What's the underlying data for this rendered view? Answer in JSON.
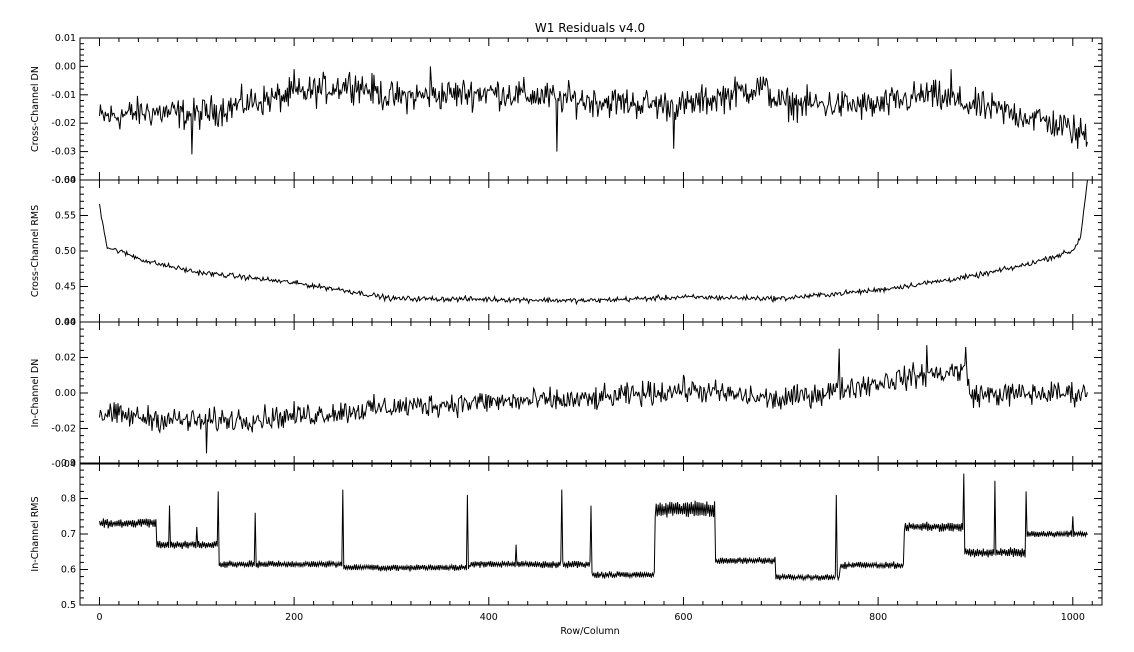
{
  "chart_data": {
    "type": "line",
    "title": "W1 Residuals v4.0",
    "xlabel": "Row/Column",
    "xlim": [
      -20,
      1030
    ],
    "x_ticks": [
      0,
      200,
      400,
      600,
      800,
      1000
    ],
    "x_tick_labels": [
      "0",
      "200",
      "400",
      "600",
      "800",
      "1000"
    ],
    "x_points": 1016,
    "panels": [
      {
        "ylabel": "Cross-Channel DN",
        "ylim": [
          -0.04,
          0.01
        ],
        "y_ticks": [
          -0.04,
          -0.03,
          -0.02,
          -0.01,
          0.0,
          0.01
        ],
        "y_tick_labels": [
          "-0.04",
          "-0.03",
          "-0.02",
          "-0.01",
          "0.00",
          "0.01"
        ],
        "trend_x": [
          0,
          50,
          100,
          150,
          200,
          260,
          300,
          400,
          500,
          600,
          680,
          700,
          800,
          850,
          900,
          960,
          1015
        ],
        "trend_y": [
          -0.018,
          -0.016,
          -0.017,
          -0.013,
          -0.01,
          -0.006,
          -0.011,
          -0.009,
          -0.012,
          -0.014,
          -0.007,
          -0.013,
          -0.014,
          -0.01,
          -0.014,
          -0.018,
          -0.024
        ],
        "noise": 0.0045,
        "features": [
          {
            "x": 95,
            "y": -0.031
          },
          {
            "x": 200,
            "y": -0.001
          },
          {
            "x": 340,
            "y": 0.0
          },
          {
            "x": 470,
            "y": -0.03
          },
          {
            "x": 590,
            "y": -0.029
          },
          {
            "x": 875,
            "y": -0.001
          },
          {
            "x": 1005,
            "y": -0.029
          }
        ]
      },
      {
        "ylabel": "Cross-Channel RMS",
        "ylim": [
          0.4,
          0.6
        ],
        "y_ticks": [
          0.4,
          0.45,
          0.5,
          0.55,
          0.6
        ],
        "y_tick_labels": [
          "0.40",
          "0.45",
          "0.50",
          "0.55",
          "0.60"
        ],
        "trend_x": [
          0,
          8,
          20,
          50,
          100,
          150,
          200,
          250,
          300,
          400,
          500,
          600,
          700,
          800,
          900,
          950,
          1000,
          1008,
          1015
        ],
        "trend_y": [
          0.565,
          0.505,
          0.5,
          0.485,
          0.47,
          0.463,
          0.455,
          0.445,
          0.433,
          0.432,
          0.43,
          0.435,
          0.433,
          0.445,
          0.465,
          0.48,
          0.5,
          0.52,
          0.6
        ],
        "noise": 0.003,
        "features": []
      },
      {
        "ylabel": "In-Channel DN",
        "ylim": [
          -0.04,
          0.04
        ],
        "y_ticks": [
          -0.04,
          -0.02,
          0.0,
          0.02,
          0.04
        ],
        "y_tick_labels": [
          "-0.04",
          "-0.02",
          "0.00",
          "0.02",
          "0.04"
        ],
        "trend_x": [
          0,
          100,
          200,
          300,
          400,
          500,
          600,
          700,
          760,
          820,
          890,
          895,
          1015
        ],
        "trend_y": [
          -0.012,
          -0.016,
          -0.013,
          -0.008,
          -0.005,
          -0.004,
          0.002,
          -0.004,
          0.002,
          0.008,
          0.013,
          -0.001,
          0.0
        ],
        "noise": 0.0055,
        "features": [
          {
            "x": 110,
            "y": -0.034
          },
          {
            "x": 760,
            "y": 0.025
          },
          {
            "x": 850,
            "y": 0.027
          },
          {
            "x": 890,
            "y": 0.026
          }
        ]
      },
      {
        "ylabel": "In-Channel RMS",
        "ylim": [
          0.5,
          0.9
        ],
        "y_ticks": [
          0.5,
          0.6,
          0.7,
          0.8,
          0.9
        ],
        "y_tick_labels": [
          "0.5",
          "0.6",
          "0.7",
          "0.8",
          "0.9"
        ],
        "segments": [
          {
            "x0": 0,
            "x1": 58,
            "level": 0.73,
            "ripple": 0.012
          },
          {
            "x0": 59,
            "x1": 122,
            "level": 0.67,
            "ripple": 0.01
          },
          {
            "x0": 123,
            "x1": 250,
            "level": 0.615,
            "ripple": 0.008
          },
          {
            "x0": 251,
            "x1": 380,
            "level": 0.605,
            "ripple": 0.008
          },
          {
            "x0": 381,
            "x1": 505,
            "level": 0.615,
            "ripple": 0.009
          },
          {
            "x0": 506,
            "x1": 570,
            "level": 0.585,
            "ripple": 0.008
          },
          {
            "x0": 571,
            "x1": 632,
            "level": 0.77,
            "ripple": 0.022
          },
          {
            "x0": 633,
            "x1": 694,
            "level": 0.625,
            "ripple": 0.008
          },
          {
            "x0": 695,
            "x1": 760,
            "level": 0.578,
            "ripple": 0.007
          },
          {
            "x0": 761,
            "x1": 826,
            "level": 0.612,
            "ripple": 0.008
          },
          {
            "x0": 827,
            "x1": 888,
            "level": 0.72,
            "ripple": 0.012
          },
          {
            "x0": 889,
            "x1": 952,
            "level": 0.648,
            "ripple": 0.012
          },
          {
            "x0": 953,
            "x1": 1015,
            "level": 0.7,
            "ripple": 0.008
          }
        ],
        "spikes": [
          {
            "x": 72,
            "y": 0.78
          },
          {
            "x": 100,
            "y": 0.72
          },
          {
            "x": 122,
            "y": 0.82
          },
          {
            "x": 160,
            "y": 0.76
          },
          {
            "x": 250,
            "y": 0.825
          },
          {
            "x": 378,
            "y": 0.81
          },
          {
            "x": 428,
            "y": 0.67
          },
          {
            "x": 475,
            "y": 0.825
          },
          {
            "x": 505,
            "y": 0.78
          },
          {
            "x": 757,
            "y": 0.81
          },
          {
            "x": 888,
            "y": 0.87
          },
          {
            "x": 920,
            "y": 0.85
          },
          {
            "x": 952,
            "y": 0.82
          },
          {
            "x": 1000,
            "y": 0.75
          }
        ]
      }
    ]
  }
}
